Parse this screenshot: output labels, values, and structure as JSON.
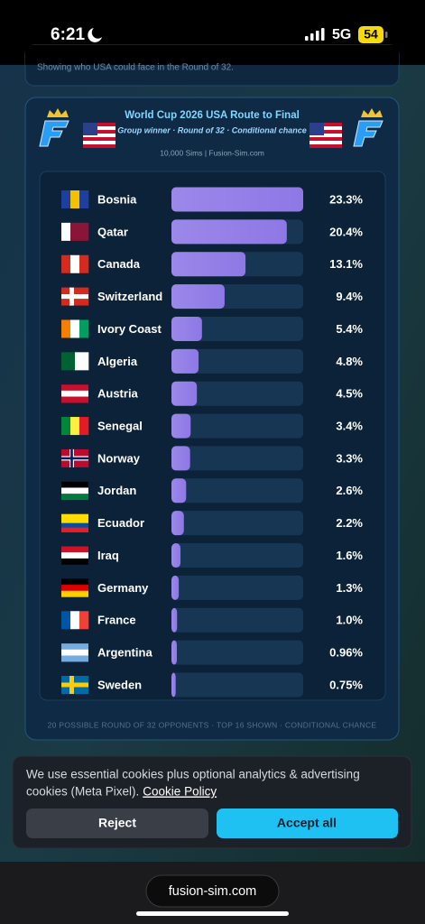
{
  "status_bar": {
    "time": "6:21",
    "network": "5G",
    "battery": "54"
  },
  "previous_card": {
    "caption": "Showing who USA could face in the Round of 32."
  },
  "card": {
    "title": "World Cup 2026 USA Route to Final",
    "subtitle": "Group winner · Round of 32 · Conditional chance",
    "source": "10,000 Sims | Fusion-Sim.com",
    "footer": "20 POSSIBLE ROUND OF 32 OPPONENTS · TOP 16 SHOWN · CONDITIONAL CHANCE"
  },
  "chart_data": {
    "type": "bar",
    "orientation": "horizontal",
    "color": "#8e78e6",
    "categories": [
      "Bosnia",
      "Qatar",
      "Canada",
      "Switzerland",
      "Ivory Coast",
      "Algeria",
      "Austria",
      "Senegal",
      "Norway",
      "Jordan",
      "Ecuador",
      "Iraq",
      "Germany",
      "France",
      "Argentina",
      "Sweden"
    ],
    "values": [
      23.3,
      20.4,
      13.1,
      9.4,
      5.4,
      4.8,
      4.5,
      3.4,
      3.3,
      2.6,
      2.2,
      1.6,
      1.3,
      1.0,
      0.96,
      0.75
    ],
    "value_labels": [
      "23.3%",
      "20.4%",
      "13.1%",
      "9.4%",
      "5.4%",
      "4.8%",
      "4.5%",
      "3.4%",
      "3.3%",
      "2.6%",
      "2.2%",
      "1.6%",
      "1.3%",
      "1.0%",
      "0.96%",
      "0.75%"
    ],
    "xlim": [
      0,
      23.3
    ]
  },
  "cookie": {
    "lines": [
      "We use essential cookies plus optional analytics & advertising",
      "cookies (Meta Pixel)."
    ],
    "link": "Cookie Policy",
    "reject": "Reject",
    "accept": "Accept all"
  },
  "browser": {
    "url": "fusion-sim.com"
  }
}
